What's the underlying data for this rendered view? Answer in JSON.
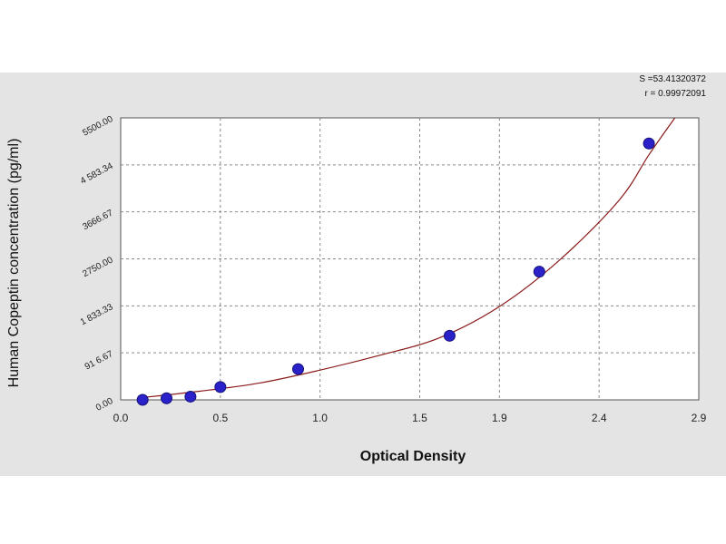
{
  "chart_data": {
    "type": "scatter",
    "title": "",
    "xlabel": "Optical Density",
    "ylabel": "Human Copeptin concentration (pg/ml)",
    "xlim": [
      0.0,
      2.9
    ],
    "ylim": [
      0.0,
      5500.0
    ],
    "x_ticks": [
      0.0,
      0.5,
      1.0,
      1.5,
      1.9,
      2.4,
      2.9
    ],
    "x_tick_labels": [
      "0.0",
      "0.5",
      "1.0",
      "1.5",
      "1.9",
      "2.4",
      "2.9"
    ],
    "y_ticks": [
      0,
      916.67,
      1833.33,
      2750.0,
      3666.67,
      4583.34,
      5500.0
    ],
    "y_tick_labels": [
      "0.00",
      "91 6.67",
      "1 833.33",
      "2750.00",
      "3666.67",
      "4 583.34",
      "5500.00"
    ],
    "grid": true,
    "series": [
      {
        "points": [
          {
            "x": 0.11,
            "y": 0
          },
          {
            "x": 0.23,
            "y": 31.25
          },
          {
            "x": 0.35,
            "y": 62.5
          },
          {
            "x": 0.5,
            "y": 250
          },
          {
            "x": 0.89,
            "y": 600
          },
          {
            "x": 1.65,
            "y": 1250
          },
          {
            "x": 2.1,
            "y": 2500
          },
          {
            "x": 2.65,
            "y": 5000
          }
        ],
        "fit_curve": [
          {
            "x": 0.1,
            "y": 40
          },
          {
            "x": 0.4,
            "y": 170
          },
          {
            "x": 0.7,
            "y": 330
          },
          {
            "x": 1.0,
            "y": 580
          },
          {
            "x": 1.3,
            "y": 870
          },
          {
            "x": 1.6,
            "y": 1210
          },
          {
            "x": 1.9,
            "y": 1820
          },
          {
            "x": 2.2,
            "y": 2720
          },
          {
            "x": 2.5,
            "y": 3890
          },
          {
            "x": 2.65,
            "y": 4780
          },
          {
            "x": 2.78,
            "y": 5500
          }
        ],
        "point_color": "#2a22c8",
        "curve_color": "#8b1a1a"
      }
    ],
    "fit_stats": {
      "s": "S =53.41320372",
      "r": "r = 0.99972091"
    }
  }
}
